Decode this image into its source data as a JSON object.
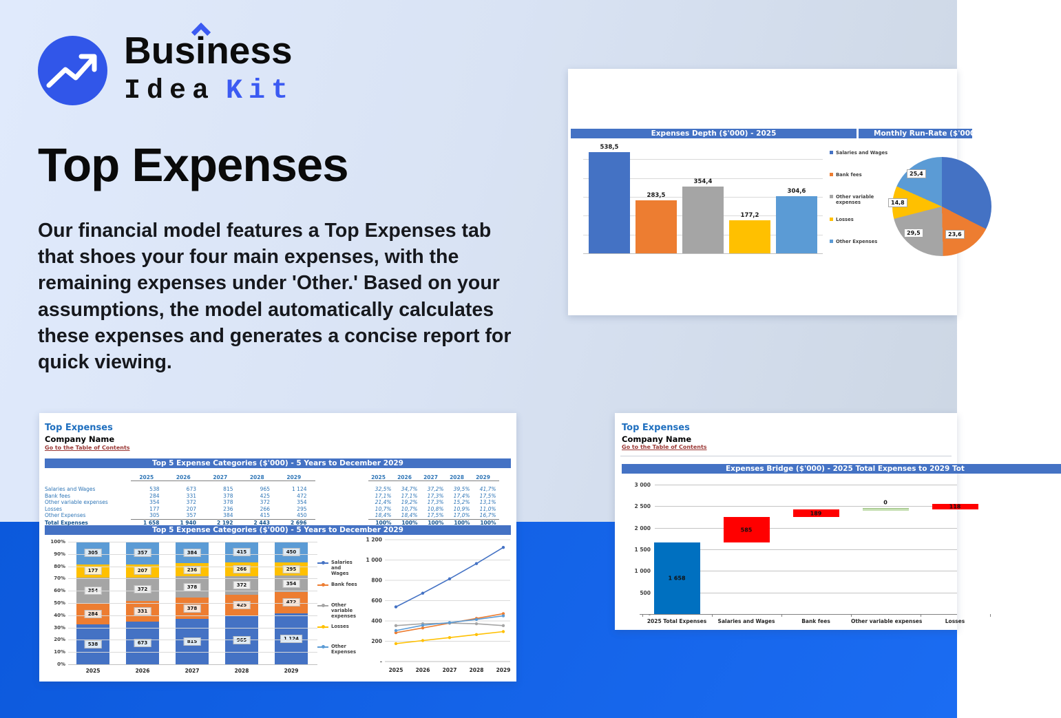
{
  "logo": {
    "word1_a": "Bus",
    "word1_b": "i",
    "word1_c": "ness",
    "word2": "Idea",
    "word3": "Kit"
  },
  "hero": {
    "title": "Top Expenses",
    "description": "Our financial model features a Top Expenses tab that shoes your four main expenses, with the remaining expenses under 'Other.' Based on your assumptions, the model automatically calculates these expenses and generates a concise report for quick viewing."
  },
  "colors": {
    "series": [
      "#4472C4",
      "#ED7D31",
      "#A5A5A5",
      "#FFC000",
      "#5B9BD5"
    ],
    "label_bgs": [
      "#DEEBF7",
      "#FBE5D6",
      "#EFEFEF",
      "#FFF2CC",
      "#DDEBF7"
    ],
    "header_bar": "#4472C4",
    "bridge_blue": "#0070C0",
    "bridge_red": "#FF0000",
    "bridge_green": "#C6E0B4",
    "band_blue": "#1163E6",
    "logo_blue": "#3156E9"
  },
  "legend_series": [
    "Salaries and Wages",
    "Bank fees",
    "Other variable expenses",
    "Losses",
    "Other Expenses"
  ],
  "depth_panel": {
    "bar_header": "Expenses Depth ($'000) - 2025",
    "pie_header": "Monthly Run-Rate ($'000",
    "chart_data": {
      "type": "bar",
      "title": "Expenses Depth ($'000) - 2025",
      "categories": [
        "Salaries and Wages",
        "Bank fees",
        "Other variable expenses",
        "Losses",
        "Other Expenses"
      ],
      "values": [
        538.5,
        283.5,
        354.4,
        177.2,
        304.6
      ],
      "value_labels": [
        "538,5",
        "283,5",
        "354,4",
        "177,2",
        "304,6"
      ],
      "ylim": [
        0,
        600
      ],
      "legend_position": "right"
    },
    "pie_chart_data": {
      "type": "pie",
      "title": "Monthly Run-Rate ($'000",
      "slices": [
        {
          "name": "Salaries and Wages",
          "pct": 32.5,
          "label": ""
        },
        {
          "name": "Bank fees",
          "pct": 17.1,
          "label": "23,6"
        },
        {
          "name": "Other variable expenses",
          "pct": 21.4,
          "label": "29,5"
        },
        {
          "name": "Losses",
          "pct": 10.7,
          "label": "14,8"
        },
        {
          "name": "Other Expenses",
          "pct": 18.4,
          "label": "25,4"
        }
      ]
    }
  },
  "top5_panel": {
    "sheet_title": "Top Expenses",
    "company_name": "Company Name",
    "toc_link": "Go to the Table of Contents",
    "section_header": "Top 5 Expense Categories ($'000) - 5 Years to December 2029",
    "chart_header": "Top 5 Expense Categories ($'000) - 5 Years to December 2029",
    "years": [
      "2025",
      "2026",
      "2027",
      "2028",
      "2029"
    ],
    "table_rows": [
      {
        "label": "Salaries and Wages",
        "values": [
          "538",
          "673",
          "815",
          "965",
          "1 124"
        ],
        "pcts": [
          "32,5%",
          "34,7%",
          "37,2%",
          "39,5%",
          "41,7%"
        ]
      },
      {
        "label": "Bank fees",
        "values": [
          "284",
          "331",
          "378",
          "425",
          "472"
        ],
        "pcts": [
          "17,1%",
          "17,1%",
          "17,3%",
          "17,4%",
          "17,5%"
        ]
      },
      {
        "label": "Other variable expenses",
        "values": [
          "354",
          "372",
          "378",
          "372",
          "354"
        ],
        "pcts": [
          "21,4%",
          "19,2%",
          "17,3%",
          "15,2%",
          "13,1%"
        ]
      },
      {
        "label": "Losses",
        "values": [
          "177",
          "207",
          "236",
          "266",
          "295"
        ],
        "pcts": [
          "10,7%",
          "10,7%",
          "10,8%",
          "10,9%",
          "11,0%"
        ]
      },
      {
        "label": "Other Expenses",
        "values": [
          "305",
          "357",
          "384",
          "415",
          "450"
        ],
        "pcts": [
          "18,4%",
          "18,4%",
          "17,5%",
          "17,0%",
          "16,7%"
        ]
      }
    ],
    "total_row": {
      "label": "Total Expenses",
      "values": [
        "1 658",
        "1 940",
        "2 192",
        "2 443",
        "2 696"
      ],
      "pcts": [
        "100%",
        "100%",
        "100%",
        "100%",
        "100%"
      ]
    },
    "stacked_chart_data": {
      "type": "bar",
      "stacked": true,
      "categories": [
        "2025",
        "2026",
        "2027",
        "2028",
        "2029"
      ],
      "totals": [
        1658,
        1940,
        2192,
        2443,
        2696
      ],
      "series": [
        {
          "name": "Salaries and Wages",
          "values": [
            538,
            673,
            815,
            965,
            1124
          ],
          "labels": [
            "538",
            "673",
            "815",
            "965",
            "1 124"
          ]
        },
        {
          "name": "Bank fees",
          "values": [
            284,
            331,
            378,
            425,
            472
          ],
          "labels": [
            "284",
            "331",
            "378",
            "425",
            "472"
          ]
        },
        {
          "name": "Other variable expenses",
          "values": [
            354,
            372,
            378,
            372,
            354
          ],
          "labels": [
            "354",
            "372",
            "378",
            "372",
            "354"
          ]
        },
        {
          "name": "Losses",
          "values": [
            177,
            207,
            236,
            266,
            295
          ],
          "labels": [
            "177",
            "207",
            "236",
            "266",
            "295"
          ]
        },
        {
          "name": "Other Expenses",
          "values": [
            305,
            357,
            384,
            415,
            450
          ],
          "labels": [
            "305",
            "357",
            "384",
            "415",
            "450"
          ]
        }
      ],
      "y_ticks": [
        "0%",
        "10%",
        "20%",
        "30%",
        "40%",
        "50%",
        "60%",
        "70%",
        "80%",
        "90%",
        "100%"
      ]
    },
    "line_chart_data": {
      "type": "line",
      "categories": [
        "2025",
        "2026",
        "2027",
        "2028",
        "2029"
      ],
      "series": [
        {
          "name": "Salaries and Wages",
          "values": [
            538,
            673,
            815,
            965,
            1124
          ]
        },
        {
          "name": "Bank fees",
          "values": [
            284,
            331,
            378,
            425,
            472
          ]
        },
        {
          "name": "Other variable expenses",
          "values": [
            354,
            372,
            378,
            372,
            354
          ]
        },
        {
          "name": "Losses",
          "values": [
            177,
            207,
            236,
            266,
            295
          ]
        },
        {
          "name": "Other Expenses",
          "values": [
            305,
            357,
            384,
            415,
            450
          ]
        }
      ],
      "ylim": [
        0,
        1200
      ],
      "y_ticks": [
        "-",
        "200",
        "400",
        "600",
        "800",
        "1 000",
        "1 200"
      ]
    }
  },
  "bridge_panel": {
    "sheet_title": "Top Expenses",
    "company_name": "Company Name",
    "toc_link": "Go to the Table of Contents",
    "section_header": "Expenses Bridge ($'000) - 2025 Total Expenses to 2029 Tot",
    "chart_data": {
      "type": "bar",
      "subtype": "waterfall",
      "ylim": [
        0,
        3000
      ],
      "y_ticks": [
        "-",
        "500",
        "1 000",
        "1 500",
        "2 000",
        "2 500",
        "3 000"
      ],
      "bars": [
        {
          "category": "2025 Total Expenses",
          "start": 0,
          "end": 1658,
          "label": "1 658",
          "kind": "total"
        },
        {
          "category": "Salaries and Wages",
          "start": 1658,
          "end": 2243,
          "label": "585",
          "kind": "increase"
        },
        {
          "category": "Bank fees",
          "start": 2243,
          "end": 2432,
          "label": "189",
          "kind": "increase"
        },
        {
          "category": "Other variable expenses",
          "start": 2432,
          "end": 2432,
          "label": "0",
          "kind": "zero"
        },
        {
          "category": "Losses",
          "start": 2432,
          "end": 2550,
          "label": "118",
          "kind": "increase"
        }
      ]
    }
  }
}
